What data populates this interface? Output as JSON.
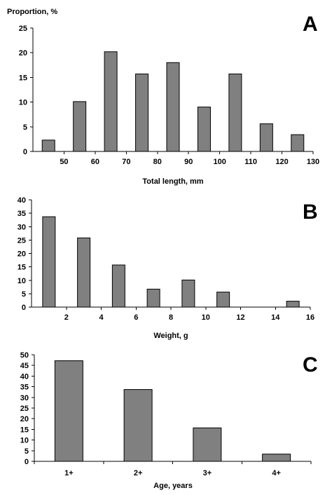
{
  "colors": {
    "bar_fill": "#808080",
    "bar_stroke": "#000000",
    "axis": "#000000",
    "text": "#000000"
  },
  "chart_data": [
    {
      "panel": "A",
      "type": "bar",
      "ylabel_top": "Proportion, %",
      "xlabel": "Total length, mm",
      "x_axis": {
        "min": 40,
        "max": 130,
        "ticks": [
          50,
          60,
          70,
          80,
          90,
          100,
          110,
          120,
          130
        ]
      },
      "y_axis": {
        "min": 0,
        "max": 25,
        "ticks": [
          0,
          5,
          10,
          15,
          20,
          25
        ]
      },
      "bars": [
        {
          "x": 45,
          "value": 2.3
        },
        {
          "x": 55,
          "value": 10.1
        },
        {
          "x": 65,
          "value": 20.2
        },
        {
          "x": 75,
          "value": 15.7
        },
        {
          "x": 85,
          "value": 18.0
        },
        {
          "x": 95,
          "value": 9.0
        },
        {
          "x": 105,
          "value": 15.7
        },
        {
          "x": 115,
          "value": 5.6
        },
        {
          "x": 125,
          "value": 3.4
        }
      ],
      "grid": false
    },
    {
      "panel": "B",
      "type": "bar",
      "xlabel": "Weight, g",
      "x_axis": {
        "min": 0,
        "max": 16,
        "ticks": [
          2,
          4,
          6,
          8,
          10,
          12,
          14,
          16
        ]
      },
      "y_axis": {
        "min": 0,
        "max": 40,
        "ticks": [
          0,
          5,
          10,
          15,
          20,
          25,
          30,
          35,
          40
        ]
      },
      "bars": [
        {
          "x": 1,
          "value": 33.7
        },
        {
          "x": 3,
          "value": 25.8
        },
        {
          "x": 5,
          "value": 15.7
        },
        {
          "x": 7,
          "value": 6.7
        },
        {
          "x": 9,
          "value": 10.1
        },
        {
          "x": 11,
          "value": 5.6
        },
        {
          "x": 15,
          "value": 2.2
        }
      ],
      "grid": false
    },
    {
      "panel": "C",
      "type": "bar",
      "xlabel": "Age, years",
      "categories": [
        "1+",
        "2+",
        "3+",
        "4+"
      ],
      "values": [
        47.2,
        33.7,
        15.7,
        3.4
      ],
      "y_axis": {
        "min": 0,
        "max": 50,
        "ticks": [
          0,
          5,
          10,
          15,
          20,
          25,
          30,
          35,
          40,
          45,
          50
        ]
      },
      "grid": false
    }
  ]
}
